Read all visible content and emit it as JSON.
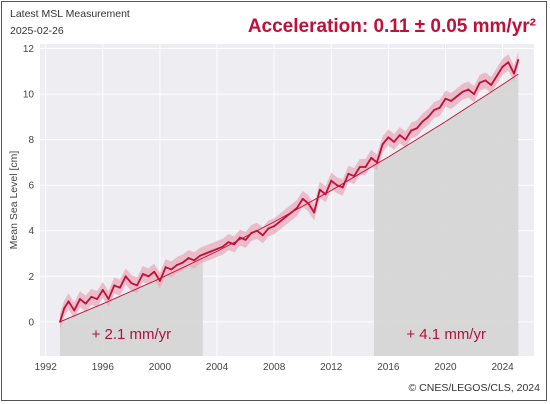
{
  "header": {
    "subtitle": "Latest MSL Measurement",
    "date": "2025-02-26",
    "acceleration": "Acceleration: 0.11 ± 0.05 mm/yr²"
  },
  "footer": {
    "copyright": "© CNES/LEGOS/CLS, 2024"
  },
  "colors": {
    "series": "#c0103a",
    "band": "#e8aebd",
    "shade": "#d4d4d4",
    "plot_bg": "#ededf2",
    "grid": "#ffffff"
  },
  "chart_data": {
    "type": "line",
    "ylabel": "Mean Sea Level [cm]",
    "xlabel": "",
    "xlim": [
      1991.6,
      2026.2
    ],
    "ylim": [
      -1.5,
      12.2
    ],
    "grid": true,
    "x_ticks": [
      1992,
      1996,
      2000,
      2004,
      2008,
      2012,
      2016,
      2020,
      2024
    ],
    "y_ticks": [
      0,
      2,
      4,
      6,
      8,
      10,
      12
    ],
    "series": [
      {
        "role": "measured",
        "x": [
          1993.0,
          1993.3,
          1993.6,
          1994.0,
          1994.4,
          1994.8,
          1995.2,
          1995.6,
          1996.0,
          1996.4,
          1996.8,
          1997.2,
          1997.6,
          1998.0,
          1998.4,
          1998.8,
          1999.2,
          1999.6,
          2000.0,
          2000.4,
          2000.8,
          2001.2,
          2001.6,
          2002.0,
          2002.4,
          2002.8,
          2003.2,
          2003.6,
          2004.0,
          2004.4,
          2004.8,
          2005.2,
          2005.6,
          2006.0,
          2006.4,
          2006.8,
          2007.2,
          2007.6,
          2008.0,
          2008.4,
          2008.8,
          2009.2,
          2009.6,
          2010.0,
          2010.4,
          2010.8,
          2011.2,
          2011.6,
          2012.0,
          2012.4,
          2012.8,
          2013.2,
          2013.6,
          2014.0,
          2014.4,
          2014.8,
          2015.2,
          2015.6,
          2016.0,
          2016.4,
          2016.8,
          2017.2,
          2017.6,
          2018.0,
          2018.4,
          2018.8,
          2019.2,
          2019.6,
          2020.0,
          2020.4,
          2020.8,
          2021.2,
          2021.6,
          2022.0,
          2022.4,
          2022.8,
          2023.2,
          2023.6,
          2024.0,
          2024.4,
          2024.8,
          2025.1
        ],
        "y": [
          0.0,
          0.6,
          0.9,
          0.5,
          1.0,
          0.8,
          1.1,
          1.0,
          1.4,
          1.0,
          1.6,
          1.5,
          2.0,
          1.7,
          1.6,
          2.1,
          2.0,
          2.2,
          1.8,
          2.4,
          2.3,
          2.5,
          2.6,
          2.8,
          2.7,
          2.9,
          3.0,
          3.1,
          3.2,
          3.3,
          3.5,
          3.4,
          3.7,
          3.6,
          3.9,
          4.0,
          3.8,
          4.1,
          4.2,
          4.4,
          4.6,
          4.8,
          5.0,
          5.4,
          5.2,
          4.8,
          5.8,
          5.6,
          6.2,
          6.0,
          5.9,
          6.5,
          6.4,
          6.8,
          6.8,
          7.2,
          7.0,
          7.8,
          8.1,
          7.9,
          8.2,
          8.0,
          8.4,
          8.5,
          8.8,
          9.0,
          9.3,
          9.4,
          9.8,
          9.7,
          9.9,
          10.1,
          10.2,
          10.0,
          10.5,
          10.6,
          10.4,
          10.8,
          11.2,
          11.4,
          10.9,
          11.5
        ],
        "uncertainty": 0.35
      },
      {
        "role": "quadratic-fit",
        "x": [
          1993,
          1996,
          2000,
          2004,
          2008,
          2012,
          2016,
          2020,
          2024,
          2025.1
        ],
        "y": [
          0.0,
          0.79,
          1.9,
          3.1,
          4.39,
          5.77,
          7.24,
          8.79,
          10.42,
          10.88
        ]
      }
    ],
    "trend_periods": [
      {
        "x_start": 1993.0,
        "x_end": 2003.0,
        "label": "+ 2.1 mm/yr"
      },
      {
        "x_start": 2015.0,
        "x_end": 2025.1,
        "label": "+ 4.1 mm/yr"
      }
    ]
  }
}
